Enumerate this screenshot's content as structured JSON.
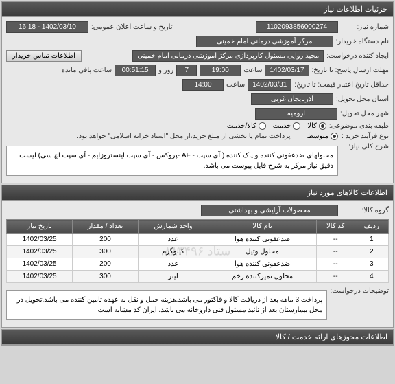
{
  "section1": {
    "title": "جزئیات اطلاعات نیاز",
    "need_number_label": "شماره نیاز:",
    "need_number": "1102093856000274",
    "announce_date_label": "تاریخ و ساعت اعلان عمومی:",
    "announce_date": "1402/03/10 - 16:18",
    "buyer_label": "نام دستگاه خریدار:",
    "buyer": "مرکز آموزشی درمانی امام خمینی",
    "requester_label": "ایجاد کننده درخواست:",
    "requester": "مجید روایی مسئول کارپردازی مرکز آموزشی درمانی امام خمینی",
    "contact_btn": "اطلاعات تماس خریدار",
    "deadline_label": "مهلت ارسال پاسخ: تا تاریخ:",
    "deadline_date": "1402/03/17",
    "deadline_time_label": "ساعت",
    "deadline_time": "19:00",
    "days": "7",
    "days_label": "روز و",
    "remaining": "00:51:15",
    "remaining_label": "ساعت باقی مانده",
    "validity_label": "حداقل تاریخ اعتبار قیمت: تا تاریخ:",
    "validity_date": "1402/03/31",
    "validity_time_label": "ساعت",
    "validity_time": "14:00",
    "province_label": "استان محل تحویل:",
    "province": "آذربایجان غربی",
    "city_label": "شهر محل تحویل:",
    "city": "ارومیه",
    "category_label": "طبقه بندی موضوعی:",
    "cat_goods": "کالا",
    "cat_service": "خدمت",
    "cat_both": "کالا/خدمت",
    "process_label": "نوع فرآیند خرید :",
    "process_low": "متوسط",
    "process_note": "پرداخت تمام یا بخشی از مبلغ خرید،از محل \"اسناد خزانه اسلامی\" خواهد بود.",
    "desc_label": "شرح کلی نیاز:",
    "desc_text": "محلولهای ضدعفونی کننده و پاک کننده ( آی سپت - AF -پروکس - آی سپت اینستروزایم - آی سپت اچ سی) لیست دقیق نیاز مرکز به شرح فایل پیوست می باشد."
  },
  "section2": {
    "title": "اطلاعات کالاهای مورد نیاز",
    "group_label": "گروه کالا:",
    "group_value": "محصولات آرایشی و بهداشتی",
    "columns": [
      "ردیف",
      "کد کالا",
      "نام کالا",
      "واحد شمارش",
      "تعداد / مقدار",
      "تاریخ نیاز"
    ],
    "rows": [
      [
        "1",
        "--",
        "ضدعفونی کننده هوا",
        "عدد",
        "200",
        "1402/03/25"
      ],
      [
        "2",
        "--",
        "محلول وتیل",
        "کیلوگرم",
        "300",
        "1402/03/25"
      ],
      [
        "3",
        "--",
        "ضدعفونی کننده هوا",
        "عدد",
        "200",
        "1402/03/25"
      ],
      [
        "4",
        "--",
        "محلول تمیزکننده زخم",
        "لیتر",
        "300",
        "1402/03/25"
      ]
    ],
    "watermark": "ستاد ۸۸۳۴۹۶",
    "notes_label": "توضیحات درخواست:",
    "notes_text": "پرداخت 3 ماهه بعد از دریافت کالا و فاکتور می باشد.هزینه حمل و نقل به عهده تامین کننده می باشد.تحویل در محل بیمارستان بعد از تائید مسئول فنی داروخانه می باشد. ایران کد مشابه است"
  },
  "section3": {
    "title": "اطلاعات مجوزهای ارائه خدمت / کالا"
  }
}
